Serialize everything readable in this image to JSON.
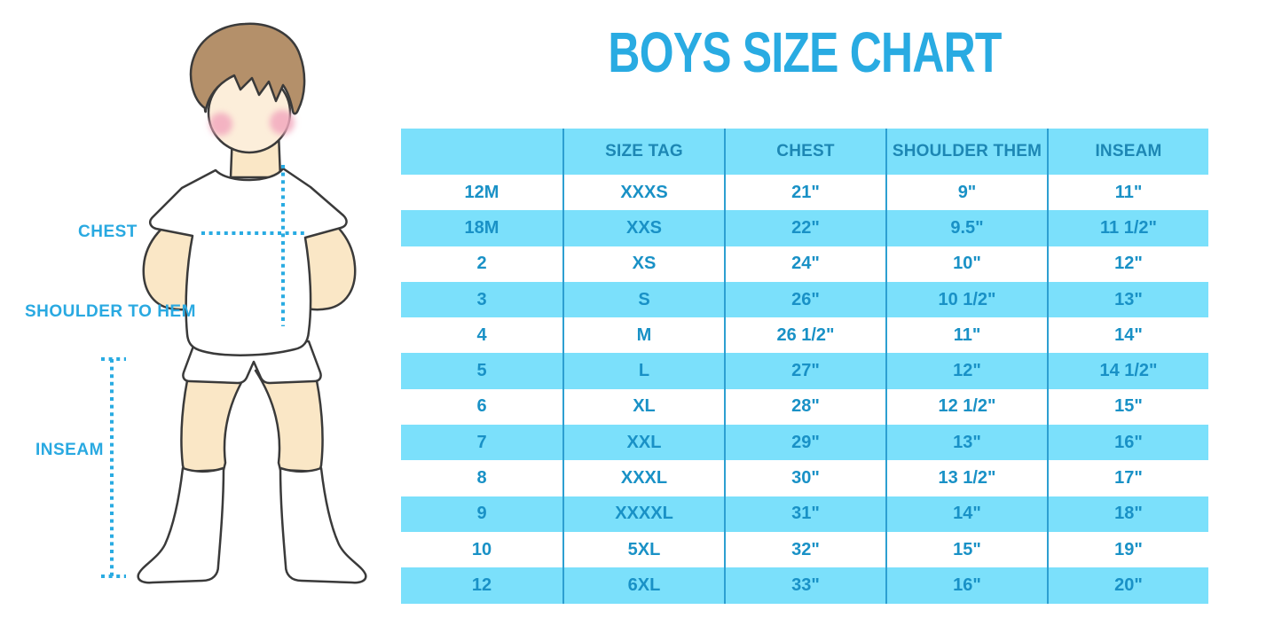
{
  "title": "BOYS SIZE CHART",
  "figure": {
    "labels": {
      "chest": "CHEST",
      "shoulder_to_hem": "SHOULDER TO HEM",
      "inseam": "INSEAM"
    },
    "icons": [
      "boy-illustration",
      "chest-measure-dotted-line",
      "shoulder-to-hem-dotted-line",
      "inseam-dotted-line"
    ]
  },
  "colors": {
    "title_blue": "#29ABE2",
    "stripe_cyan": "#7BE0FB",
    "divider_blue": "#2D9FD1",
    "cell_text_blue": "#1991C6",
    "header_text_blue": "#1D87B4",
    "label_blue": "#29A9E1",
    "dotted_line_blue": "#29ABE2",
    "skin": "#FAE7C6",
    "hair_brown": "#B4906A",
    "blush_pink": "#F2A9BE"
  },
  "chart_data": {
    "type": "table",
    "title": "BOYS SIZE CHART",
    "columns": [
      "",
      "SIZE TAG",
      "CHEST",
      "SHOULDER THEM",
      "INSEAM"
    ],
    "rows": [
      [
        "12M",
        "XXXS",
        "21\"",
        "9\"",
        "11\""
      ],
      [
        "18M",
        "XXS",
        "22\"",
        "9.5\"",
        "11 1/2\""
      ],
      [
        "2",
        "XS",
        "24\"",
        "10\"",
        "12\""
      ],
      [
        "3",
        "S",
        "26\"",
        "10 1/2\"",
        "13\""
      ],
      [
        "4",
        "M",
        "26 1/2\"",
        "11\"",
        "14\""
      ],
      [
        "5",
        "L",
        "27\"",
        "12\"",
        "14 1/2\""
      ],
      [
        "6",
        "XL",
        "28\"",
        "12 1/2\"",
        "15\""
      ],
      [
        "7",
        "XXL",
        "29\"",
        "13\"",
        "16\""
      ],
      [
        "8",
        "XXXL",
        "30\"",
        "13 1/2\"",
        "17\""
      ],
      [
        "9",
        "XXXXL",
        "31\"",
        "14\"",
        "18\""
      ],
      [
        "10",
        "5XL",
        "32\"",
        "15\"",
        "19\""
      ],
      [
        "12",
        "6XL",
        "33\"",
        "16\"",
        "20\""
      ]
    ],
    "layout": {
      "striped": true,
      "stripe_start": "white",
      "grid": "vertical-dividers-only",
      "legend": "none"
    }
  }
}
